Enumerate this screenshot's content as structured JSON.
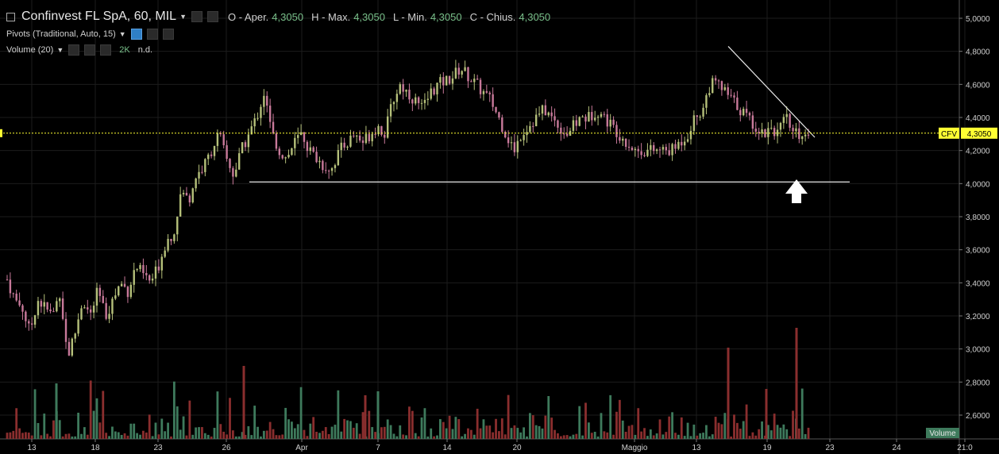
{
  "header": {
    "title": "Confinvest FL SpA, 60, MIL",
    "open_label": "O - Aper.",
    "open": "4,3050",
    "high_label": "H - Max.",
    "high": "4,3050",
    "low_label": "L - Min.",
    "low": "4,3050",
    "close_label": "C - Chius.",
    "close": "4,3050"
  },
  "indicators": [
    {
      "label": "Pivots (Traditional, Auto, 15)"
    },
    {
      "label": "Volume (20)",
      "value": "2K",
      "extra": "n.d."
    }
  ],
  "price_tag": {
    "symbol": "CFV",
    "value": "4,3050"
  },
  "volume_label": "Volume",
  "colors": {
    "up": "#b5c07a",
    "down": "#c8799a",
    "vol_up": "#3e7a5c",
    "vol_down": "#8a2e2e",
    "tag": "#ffff33"
  },
  "chart_data": {
    "type": "candlestick",
    "y_ticks": [
      "5,0000",
      "4,8000",
      "4,6000",
      "4,4000",
      "4,2000",
      "4,0000",
      "3,8000",
      "3,6000",
      "3,4000",
      "3,2000",
      "3,0000",
      "2,8000",
      "2,6000"
    ],
    "ylim": [
      2.5,
      5.05
    ],
    "x_ticks": [
      "13",
      "18",
      "23",
      "26",
      "Apr",
      "7",
      "14",
      "20",
      "Maggio",
      "13",
      "19",
      "23",
      "24",
      "21:0"
    ],
    "last_price": 4.305,
    "close_path": [
      3.42,
      3.3,
      3.25,
      3.1,
      3.3,
      3.25,
      3.2,
      3.35,
      2.95,
      3.1,
      3.3,
      3.2,
      3.35,
      3.2,
      3.3,
      3.4,
      3.35,
      3.5,
      3.45,
      3.4,
      3.5,
      3.65,
      3.7,
      3.95,
      3.9,
      4.05,
      4.1,
      4.2,
      4.3,
      4.15,
      4.05,
      4.2,
      4.3,
      4.4,
      4.55,
      4.3,
      4.2,
      4.15,
      4.25,
      4.3,
      4.2,
      4.15,
      4.1,
      4.1,
      4.2,
      4.25,
      4.3,
      4.25,
      4.3,
      4.35,
      4.3,
      4.5,
      4.6,
      4.55,
      4.5,
      4.45,
      4.55,
      4.6,
      4.62,
      4.65,
      4.7,
      4.65,
      4.6,
      4.55,
      4.5,
      4.4,
      4.3,
      4.2,
      4.3,
      4.35,
      4.4,
      4.45,
      4.4,
      4.35,
      4.3,
      4.35,
      4.4,
      4.4,
      4.45,
      4.4,
      4.35,
      4.3,
      4.25,
      4.2,
      4.2,
      4.2,
      4.2,
      4.2,
      4.2,
      4.25,
      4.3,
      4.4,
      4.45,
      4.6,
      4.6,
      4.55,
      4.5,
      4.45,
      4.4,
      4.35,
      4.3,
      4.35,
      4.3,
      4.4,
      4.3,
      4.3,
      4.305
    ],
    "support_level": 4.01,
    "trendline": [
      [
        4.83,
        4.28
      ]
    ]
  }
}
